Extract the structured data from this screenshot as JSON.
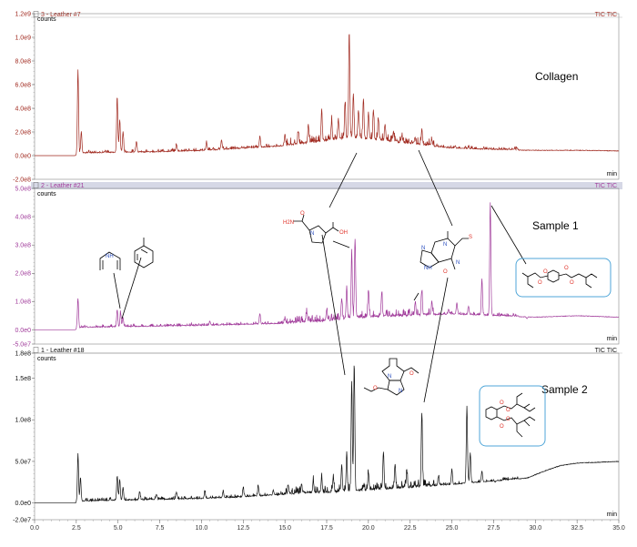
{
  "chart_data": {
    "type": "line",
    "xlabel": "",
    "x_ticks": [
      "0.0",
      "2.5",
      "5.0",
      "7.5",
      "10.0",
      "12.5",
      "15.0",
      "17.5",
      "20.0",
      "22.5",
      "25.0",
      "27.5",
      "30.0",
      "32.5",
      "35.0"
    ],
    "xlim": [
      0,
      35
    ],
    "x_unit": "min",
    "y_unit": "counts",
    "panels": [
      {
        "title": "3 - Leather #7",
        "right_label": "TIC TIC",
        "sample_label": "Collagen",
        "color": "#a0281e",
        "y_ticks": [
          "1.2e9",
          "1.0e9",
          "8.0e8",
          "6.0e8",
          "4.0e8",
          "2.0e8",
          "0.0e0",
          "-2.0e8"
        ],
        "ylim": [
          -200000000,
          1200000000
        ],
        "baseline": [
          [
            0,
            0
          ],
          [
            2.4,
            0
          ],
          [
            2.8,
            20000000
          ],
          [
            5,
            25000000
          ],
          [
            7.5,
            30000000
          ],
          [
            10,
            40000000
          ],
          [
            12.5,
            60000000
          ],
          [
            15,
            80000000
          ],
          [
            17.5,
            120000000
          ],
          [
            19,
            150000000
          ],
          [
            21,
            120000000
          ],
          [
            23,
            90000000
          ],
          [
            25,
            60000000
          ],
          [
            27.5,
            50000000
          ],
          [
            30,
            45000000
          ],
          [
            32.5,
            45000000
          ],
          [
            35,
            40000000
          ]
        ],
        "peaks": [
          [
            2.6,
            720000000
          ],
          [
            2.8,
            200000000
          ],
          [
            4.95,
            500000000
          ],
          [
            5.1,
            300000000
          ],
          [
            5.3,
            200000000
          ],
          [
            6.1,
            120000000
          ],
          [
            8.5,
            90000000
          ],
          [
            10.3,
            110000000
          ],
          [
            11.2,
            130000000
          ],
          [
            13.5,
            160000000
          ],
          [
            15.0,
            180000000
          ],
          [
            15.8,
            200000000
          ],
          [
            16.4,
            250000000
          ],
          [
            17.2,
            380000000
          ],
          [
            17.8,
            280000000
          ],
          [
            18.2,
            300000000
          ],
          [
            18.6,
            430000000
          ],
          [
            18.85,
            1050000000
          ],
          [
            19.1,
            520000000
          ],
          [
            19.4,
            380000000
          ],
          [
            19.7,
            480000000
          ],
          [
            20.0,
            360000000
          ],
          [
            20.3,
            380000000
          ],
          [
            20.6,
            300000000
          ],
          [
            21.0,
            250000000
          ],
          [
            21.5,
            200000000
          ],
          [
            22.0,
            160000000
          ],
          [
            22.8,
            140000000
          ],
          [
            23.2,
            210000000
          ],
          [
            23.8,
            120000000
          ],
          [
            25.2,
            80000000
          ],
          [
            26.0,
            70000000
          ]
        ]
      },
      {
        "title": "2 - Leather #21",
        "right_label": "TIC TIC",
        "sample_label": "Sample 1",
        "color": "#a03a9a",
        "y_ticks": [
          "5.0e8",
          "4.0e8",
          "3.0e8",
          "2.0e8",
          "1.0e8",
          "0.0e0",
          "-5.0e7"
        ],
        "ylim": [
          -50000000,
          500000000
        ],
        "baseline": [
          [
            0,
            0
          ],
          [
            2.4,
            0
          ],
          [
            2.8,
            8000000
          ],
          [
            5,
            10000000
          ],
          [
            7.5,
            12000000
          ],
          [
            10,
            15000000
          ],
          [
            12.5,
            18000000
          ],
          [
            15,
            22000000
          ],
          [
            17.5,
            30000000
          ],
          [
            19,
            40000000
          ],
          [
            21,
            45000000
          ],
          [
            23,
            50000000
          ],
          [
            25,
            55000000
          ],
          [
            27.5,
            50000000
          ],
          [
            30,
            45000000
          ],
          [
            32.5,
            50000000
          ],
          [
            35,
            45000000
          ]
        ],
        "peaks": [
          [
            2.6,
            110000000
          ],
          [
            4.95,
            70000000
          ],
          [
            5.15,
            60000000
          ],
          [
            5.3,
            40000000
          ],
          [
            10.5,
            30000000
          ],
          [
            13.5,
            55000000
          ],
          [
            15.0,
            40000000
          ],
          [
            16.3,
            60000000
          ],
          [
            17.5,
            70000000
          ],
          [
            18.4,
            110000000
          ],
          [
            18.7,
            150000000
          ],
          [
            19.0,
            270000000
          ],
          [
            19.2,
            320000000
          ],
          [
            20.0,
            140000000
          ],
          [
            20.8,
            130000000
          ],
          [
            22.8,
            90000000
          ],
          [
            23.2,
            135000000
          ],
          [
            23.8,
            95000000
          ],
          [
            24.8,
            70000000
          ],
          [
            25.3,
            95000000
          ],
          [
            26.0,
            80000000
          ],
          [
            26.8,
            180000000
          ],
          [
            27.3,
            450000000
          ],
          [
            29.5,
            40000000
          ]
        ]
      },
      {
        "title": "1 - Leather #18",
        "right_label": "TIC TIC",
        "sample_label": "Sample 2",
        "color": "#111111",
        "y_ticks": [
          "1.8e8",
          "1.5e8",
          "1.0e8",
          "5.0e7",
          "0.0e0",
          "-2.0e7"
        ],
        "ylim": [
          -20000000,
          180000000
        ],
        "baseline": [
          [
            0,
            0
          ],
          [
            2.4,
            0
          ],
          [
            2.8,
            2000000
          ],
          [
            5,
            3000000
          ],
          [
            7.5,
            4000000
          ],
          [
            10,
            5000000
          ],
          [
            12.5,
            7000000
          ],
          [
            15,
            10000000
          ],
          [
            17.5,
            12000000
          ],
          [
            20,
            15000000
          ],
          [
            22.5,
            18000000
          ],
          [
            25,
            22000000
          ],
          [
            27.5,
            26000000
          ],
          [
            29.5,
            30000000
          ],
          [
            30.5,
            38000000
          ],
          [
            31.5,
            45000000
          ],
          [
            32.5,
            48000000
          ],
          [
            35,
            50000000
          ]
        ],
        "peaks": [
          [
            2.6,
            58000000
          ],
          [
            2.75,
            30000000
          ],
          [
            4.95,
            32000000
          ],
          [
            5.1,
            28000000
          ],
          [
            5.3,
            18000000
          ],
          [
            6.3,
            12000000
          ],
          [
            7.3,
            10000000
          ],
          [
            8.5,
            12000000
          ],
          [
            10.2,
            13000000
          ],
          [
            11.3,
            14000000
          ],
          [
            12.5,
            18000000
          ],
          [
            13.4,
            20000000
          ],
          [
            14.3,
            15000000
          ],
          [
            15.2,
            20000000
          ],
          [
            16.0,
            22000000
          ],
          [
            16.7,
            25000000
          ],
          [
            17.2,
            30000000
          ],
          [
            17.9,
            30000000
          ],
          [
            18.4,
            45000000
          ],
          [
            18.7,
            60000000
          ],
          [
            19.0,
            145000000
          ],
          [
            19.15,
            165000000
          ],
          [
            20.0,
            35000000
          ],
          [
            20.9,
            60000000
          ],
          [
            21.6,
            45000000
          ],
          [
            22.3,
            38000000
          ],
          [
            23.2,
            108000000
          ],
          [
            24.2,
            32000000
          ],
          [
            25.0,
            40000000
          ],
          [
            25.9,
            115000000
          ],
          [
            26.1,
            60000000
          ],
          [
            26.8,
            38000000
          ],
          [
            27.6,
            25000000
          ],
          [
            28.5,
            28000000
          ]
        ]
      }
    ],
    "annotations": [
      {
        "type": "structure",
        "name": "prolyl-glycine diketopiperazine (collagen marker)",
        "labels": [
          "H2N",
          "N",
          "O",
          "OH"
        ]
      },
      {
        "type": "structure",
        "name": "theophylline-like purine",
        "labels": [
          "N",
          "N",
          "NH",
          "O",
          "N",
          "S"
        ]
      },
      {
        "type": "structure",
        "name": "pyrrole",
        "labels": [
          "NH"
        ]
      },
      {
        "type": "structure",
        "name": "toluene",
        "labels": []
      },
      {
        "type": "structure",
        "name": "terephthalate plasticizer",
        "labels": [
          "O",
          "O",
          "O",
          "O"
        ]
      },
      {
        "type": "structure",
        "name": "bicyclic diketopiperazine ether",
        "labels": [
          "N",
          "N",
          "O",
          "O"
        ]
      },
      {
        "type": "structure",
        "name": "phthalate plasticizer",
        "labels": [
          "O",
          "O",
          "O",
          "O"
        ]
      }
    ]
  }
}
